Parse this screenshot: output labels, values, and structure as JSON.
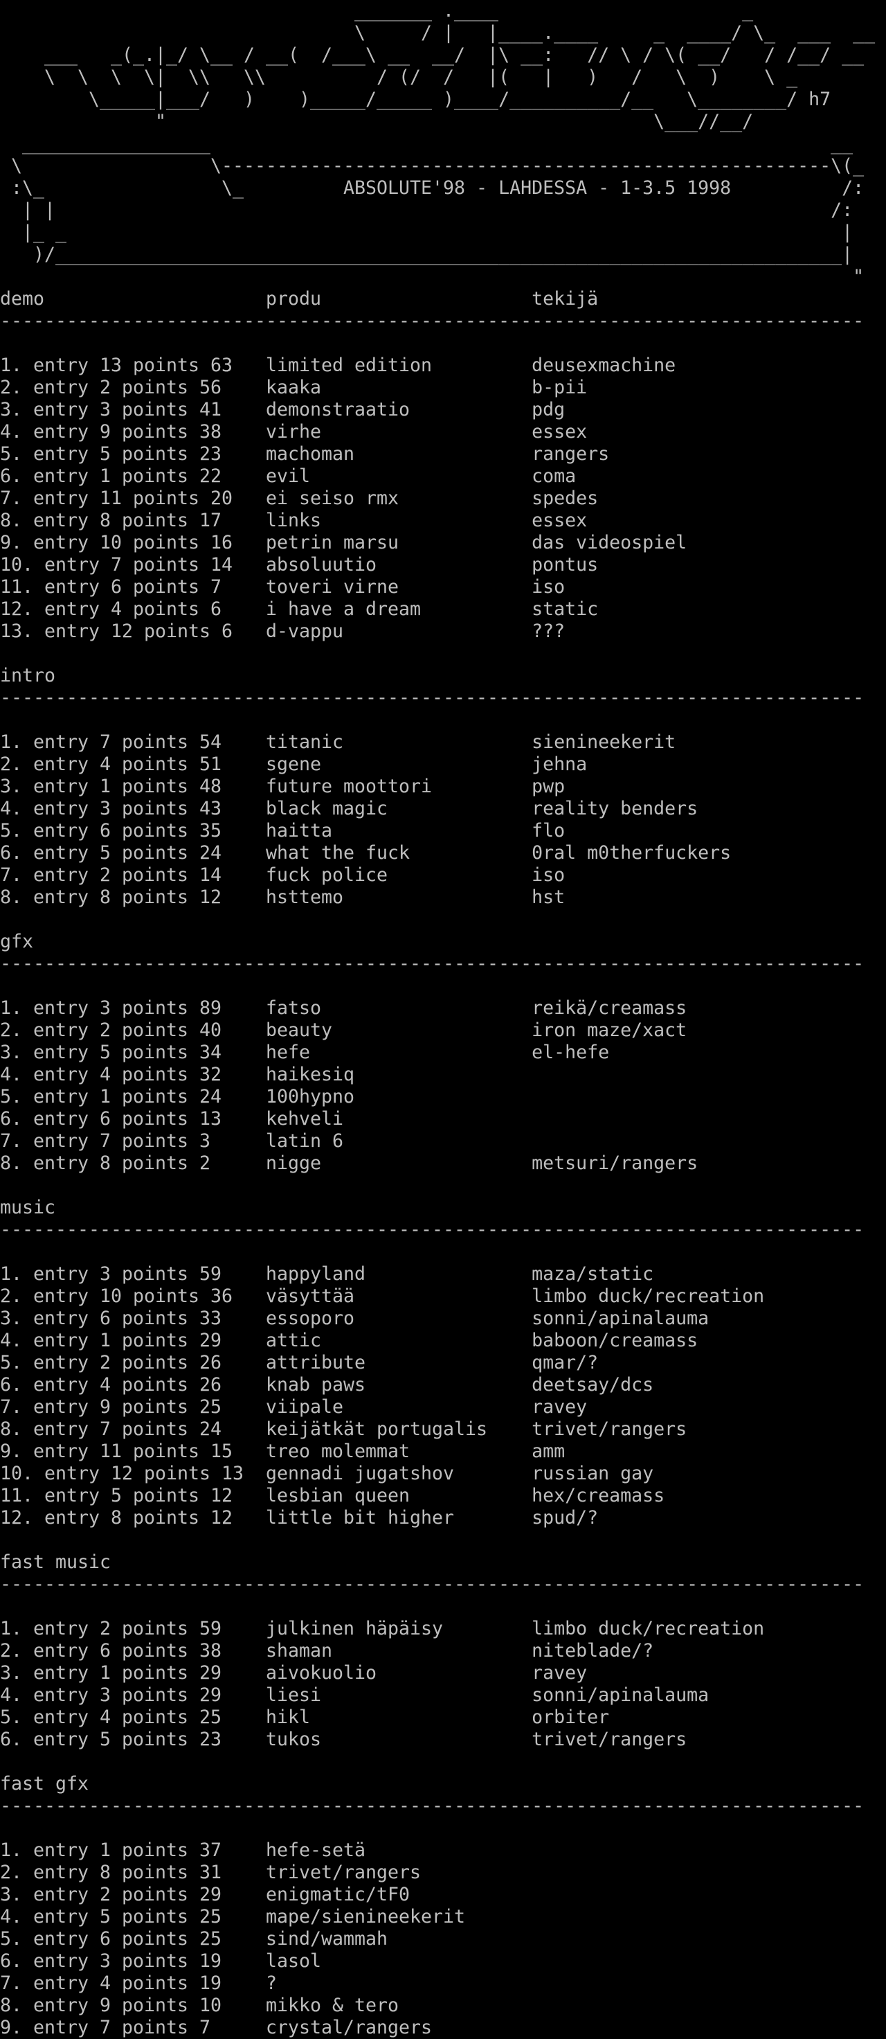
{
  "page": {
    "background_color": "#000000",
    "text_color": "#bebebe"
  },
  "ascii_logo": {
    "signature": "h7",
    "lines": [
      "                                _______ .____                      _",
      "                                \\     / |   |____.____     _  ____/ \\_  ___  __",
      "    ___   _(_.|_/ \\__ / __(  /___\\ __  __/  |\\ __:   // \\ / \\( __/   / /__/ __",
      "    \\  \\  \\  \\|  \\\\   \\\\          / (/  /   |(   |   )   /   \\  )    \\ _",
      "        \\_____|___/   )    )_____/_____ )____/__________/__   \\________/ h7",
      "              \"                                            \\___//__/"
    ]
  },
  "title_box": {
    "event_title": "ABSOLUTE'98 - LAHDESSA - 1-3.5 1998",
    "lines": [
      "  _________________                                                        __",
      " \\                 \\-------------------------------------------------------\\(_",
      " :\\_                \\_         ABSOLUTE'98 - LAHDESSA - 1-3.5 1998          /:",
      "  | |                                                                      /:",
      "  |_ _                                                                      |",
      "   )/_______________________________________________________________________|",
      "                                                                             \""
    ]
  },
  "results": {
    "column_headers": {
      "col1": "demo",
      "col2": "produ",
      "col3": "tekijä"
    },
    "separator_char": "-",
    "separator_length": 78,
    "entry_word": "entry",
    "points_word": "points",
    "col2_start": 24,
    "col3_start": 48,
    "sections": [
      {
        "label": "demo",
        "show_column_headers": true,
        "entries": [
          {
            "rank": 1,
            "entry": 13,
            "points": 63,
            "produ": "limited edition",
            "tekija": "deusexmachine"
          },
          {
            "rank": 2,
            "entry": 2,
            "points": 56,
            "produ": "kaaka",
            "tekija": "b-pii"
          },
          {
            "rank": 3,
            "entry": 3,
            "points": 41,
            "produ": "demonstraatio",
            "tekija": "pdg"
          },
          {
            "rank": 4,
            "entry": 9,
            "points": 38,
            "produ": "virhe",
            "tekija": "essex"
          },
          {
            "rank": 5,
            "entry": 5,
            "points": 23,
            "produ": "machoman",
            "tekija": "rangers"
          },
          {
            "rank": 6,
            "entry": 1,
            "points": 22,
            "produ": "evil",
            "tekija": "coma"
          },
          {
            "rank": 7,
            "entry": 11,
            "points": 20,
            "produ": "ei seiso rmx",
            "tekija": "spedes"
          },
          {
            "rank": 8,
            "entry": 8,
            "points": 17,
            "produ": "links",
            "tekija": "essex"
          },
          {
            "rank": 9,
            "entry": 10,
            "points": 16,
            "produ": "petrin marsu",
            "tekija": "das videospiel"
          },
          {
            "rank": 10,
            "entry": 7,
            "points": 14,
            "produ": "absoluutio",
            "tekija": "pontus"
          },
          {
            "rank": 11,
            "entry": 6,
            "points": 7,
            "produ": "toveri virne",
            "tekija": "iso"
          },
          {
            "rank": 12,
            "entry": 4,
            "points": 6,
            "produ": "i have a dream",
            "tekija": "static"
          },
          {
            "rank": 13,
            "entry": 12,
            "points": 6,
            "produ": "d-vappu",
            "tekija": "???"
          }
        ]
      },
      {
        "label": "intro",
        "show_column_headers": false,
        "entries": [
          {
            "rank": 1,
            "entry": 7,
            "points": 54,
            "produ": "titanic",
            "tekija": "sienineekerit"
          },
          {
            "rank": 2,
            "entry": 4,
            "points": 51,
            "produ": "sgene",
            "tekija": "jehna"
          },
          {
            "rank": 3,
            "entry": 1,
            "points": 48,
            "produ": "future moottori",
            "tekija": "pwp"
          },
          {
            "rank": 4,
            "entry": 3,
            "points": 43,
            "produ": "black magic",
            "tekija": "reality benders"
          },
          {
            "rank": 5,
            "entry": 6,
            "points": 35,
            "produ": "haitta",
            "tekija": "flo"
          },
          {
            "rank": 6,
            "entry": 5,
            "points": 24,
            "produ": "what the fuck",
            "tekija": "0ral m0therfuckers"
          },
          {
            "rank": 7,
            "entry": 2,
            "points": 14,
            "produ": "fuck police",
            "tekija": "iso"
          },
          {
            "rank": 8,
            "entry": 8,
            "points": 12,
            "produ": "hsttemo",
            "tekija": "hst"
          }
        ]
      },
      {
        "label": "gfx",
        "show_column_headers": false,
        "entries": [
          {
            "rank": 1,
            "entry": 3,
            "points": 89,
            "produ": "fatso",
            "tekija": "reikä/creamass"
          },
          {
            "rank": 2,
            "entry": 2,
            "points": 40,
            "produ": "beauty",
            "tekija": "iron maze/xact"
          },
          {
            "rank": 3,
            "entry": 5,
            "points": 34,
            "produ": "hefe",
            "tekija": "el-hefe"
          },
          {
            "rank": 4,
            "entry": 4,
            "points": 32,
            "produ": "haikesiq",
            "tekija": ""
          },
          {
            "rank": 5,
            "entry": 1,
            "points": 24,
            "produ": "100hypno",
            "tekija": ""
          },
          {
            "rank": 6,
            "entry": 6,
            "points": 13,
            "produ": "kehveli",
            "tekija": ""
          },
          {
            "rank": 7,
            "entry": 7,
            "points": 3,
            "produ": "latin 6",
            "tekija": ""
          },
          {
            "rank": 8,
            "entry": 8,
            "points": 2,
            "produ": "nigge",
            "tekija": "metsuri/rangers"
          }
        ]
      },
      {
        "label": "music",
        "show_column_headers": false,
        "entries": [
          {
            "rank": 1,
            "entry": 3,
            "points": 59,
            "produ": "happyland",
            "tekija": "maza/static"
          },
          {
            "rank": 2,
            "entry": 10,
            "points": 36,
            "produ": "väsyttää",
            "tekija": "limbo duck/recreation"
          },
          {
            "rank": 3,
            "entry": 6,
            "points": 33,
            "produ": "essoporo",
            "tekija": "sonni/apinalauma"
          },
          {
            "rank": 4,
            "entry": 1,
            "points": 29,
            "produ": "attic",
            "tekija": "baboon/creamass"
          },
          {
            "rank": 5,
            "entry": 2,
            "points": 26,
            "produ": "attribute",
            "tekija": "qmar/?"
          },
          {
            "rank": 6,
            "entry": 4,
            "points": 26,
            "produ": "knab paws",
            "tekija": "deetsay/dcs"
          },
          {
            "rank": 7,
            "entry": 9,
            "points": 25,
            "produ": "viipale",
            "tekija": "ravey"
          },
          {
            "rank": 8,
            "entry": 7,
            "points": 24,
            "produ": "keijätkät portugalis",
            "tekija": "trivet/rangers"
          },
          {
            "rank": 9,
            "entry": 11,
            "points": 15,
            "produ": "treo molemmat",
            "tekija": "amm"
          },
          {
            "rank": 10,
            "entry": 12,
            "points": 13,
            "produ": "gennadi jugatshov",
            "tekija": "russian gay"
          },
          {
            "rank": 11,
            "entry": 5,
            "points": 12,
            "produ": "lesbian queen",
            "tekija": "hex/creamass"
          },
          {
            "rank": 12,
            "entry": 8,
            "points": 12,
            "produ": "little bit higher",
            "tekija": "spud/?"
          }
        ]
      },
      {
        "label": "fast music",
        "show_column_headers": false,
        "entries": [
          {
            "rank": 1,
            "entry": 2,
            "points": 59,
            "produ": "julkinen häpäisy",
            "tekija": "limbo duck/recreation"
          },
          {
            "rank": 2,
            "entry": 6,
            "points": 38,
            "produ": "shaman",
            "tekija": "niteblade/?"
          },
          {
            "rank": 3,
            "entry": 1,
            "points": 29,
            "produ": "aivokuolio",
            "tekija": "ravey"
          },
          {
            "rank": 4,
            "entry": 3,
            "points": 29,
            "produ": "liesi",
            "tekija": "sonni/apinalauma"
          },
          {
            "rank": 5,
            "entry": 4,
            "points": 25,
            "produ": "hikl",
            "tekija": "orbiter"
          },
          {
            "rank": 6,
            "entry": 5,
            "points": 23,
            "produ": "tukos",
            "tekija": "trivet/rangers"
          }
        ]
      },
      {
        "label": "fast gfx",
        "show_column_headers": false,
        "entries": [
          {
            "rank": 1,
            "entry": 1,
            "points": 37,
            "produ": "hefe-setä",
            "tekija": ""
          },
          {
            "rank": 2,
            "entry": 8,
            "points": 31,
            "produ": "trivet/rangers",
            "tekija": ""
          },
          {
            "rank": 3,
            "entry": 2,
            "points": 29,
            "produ": "enigmatic/tF0",
            "tekija": ""
          },
          {
            "rank": 4,
            "entry": 5,
            "points": 25,
            "produ": "mape/sienineekerit",
            "tekija": ""
          },
          {
            "rank": 5,
            "entry": 6,
            "points": 25,
            "produ": "sind/wammah",
            "tekija": ""
          },
          {
            "rank": 6,
            "entry": 3,
            "points": 19,
            "produ": "lasol",
            "tekija": ""
          },
          {
            "rank": 7,
            "entry": 4,
            "points": 19,
            "produ": "?",
            "tekija": ""
          },
          {
            "rank": 8,
            "entry": 9,
            "points": 10,
            "produ": "mikko & tero",
            "tekija": ""
          },
          {
            "rank": 9,
            "entry": 7,
            "points": 7,
            "produ": "crystal/rangers",
            "tekija": ""
          }
        ]
      }
    ]
  }
}
